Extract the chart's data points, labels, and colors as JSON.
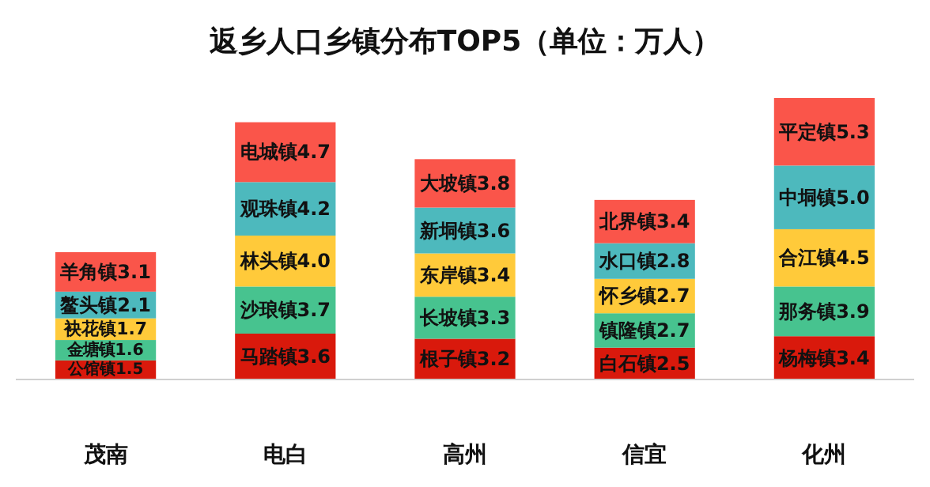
{
  "chart_data": {
    "type": "bar",
    "stacked": true,
    "title": "返乡人口乡镇分布TOP5（单位：万人）",
    "categories": [
      "茂南",
      "电白",
      "高州",
      "信宜",
      "化州"
    ],
    "series": [
      {
        "color": "#d9190c",
        "values": [
          1.5,
          3.6,
          3.2,
          2.5,
          3.4
        ],
        "value_labels": [
          "公馆镇1.5",
          "马踏镇3.6",
          "根子镇3.2",
          "白石镇2.5",
          "杨梅镇3.4"
        ]
      },
      {
        "color": "#47c38f",
        "values": [
          1.6,
          3.7,
          3.3,
          2.7,
          3.9
        ],
        "value_labels": [
          "金塘镇1.6",
          "沙琅镇3.7",
          "长坡镇3.3",
          "镇隆镇2.7",
          "那务镇3.9"
        ]
      },
      {
        "color": "#ffca3a",
        "values": [
          1.7,
          4.0,
          3.4,
          2.7,
          4.5
        ],
        "value_labels": [
          "袂花镇1.7",
          "林头镇4.0",
          "东岸镇3.4",
          "怀乡镇2.7",
          "合江镇4.5"
        ]
      },
      {
        "color": "#4db9bd",
        "values": [
          2.1,
          4.2,
          3.6,
          2.8,
          5.0
        ],
        "value_labels": [
          "鳌头镇2.1",
          "观珠镇4.2",
          "新垌镇3.6",
          "水口镇2.8",
          "中垌镇5.0"
        ]
      },
      {
        "color": "#fa554a",
        "values": [
          3.1,
          4.7,
          3.8,
          3.4,
          5.3
        ],
        "value_labels": [
          "羊角镇3.1",
          "电城镇4.7",
          "大坡镇3.8",
          "北界镇3.4",
          "平定镇5.3"
        ]
      }
    ]
  }
}
